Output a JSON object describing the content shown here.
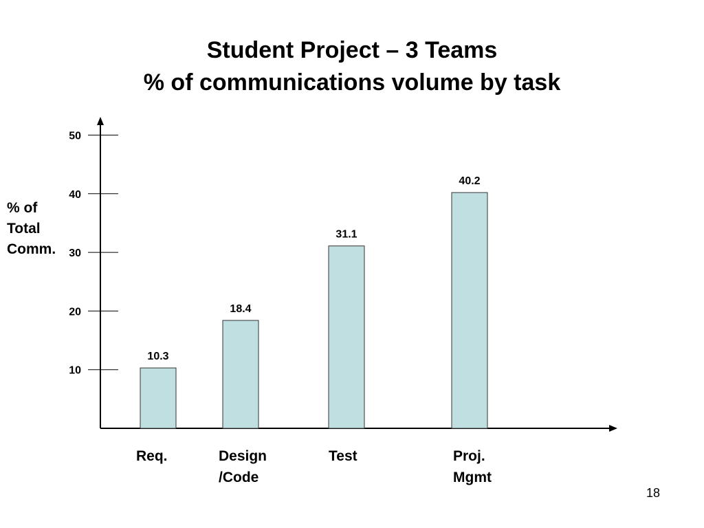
{
  "page": {
    "number": "18"
  },
  "chart_data": {
    "type": "bar",
    "title": "Student Project – 3 Teams",
    "subtitle": "% of communications volume by task",
    "xlabel": "",
    "ylabel": "% of\nTotal\nComm.",
    "categories": [
      [
        "Req."
      ],
      [
        "Design",
        "/Code"
      ],
      [
        "Test"
      ],
      [
        "Proj.",
        "Mgmt"
      ]
    ],
    "values": [
      10.3,
      18.4,
      31.1,
      40.2
    ],
    "data_labels": [
      "10.3",
      "18.4",
      "31.1",
      "40.2"
    ],
    "yticks": [
      10,
      20,
      30,
      40,
      50
    ],
    "ylim": [
      0,
      52
    ],
    "grid": false,
    "colors": {
      "bar_fill": "#bfdfe0",
      "bar_stroke": "#333333",
      "axis": "#000000"
    }
  }
}
